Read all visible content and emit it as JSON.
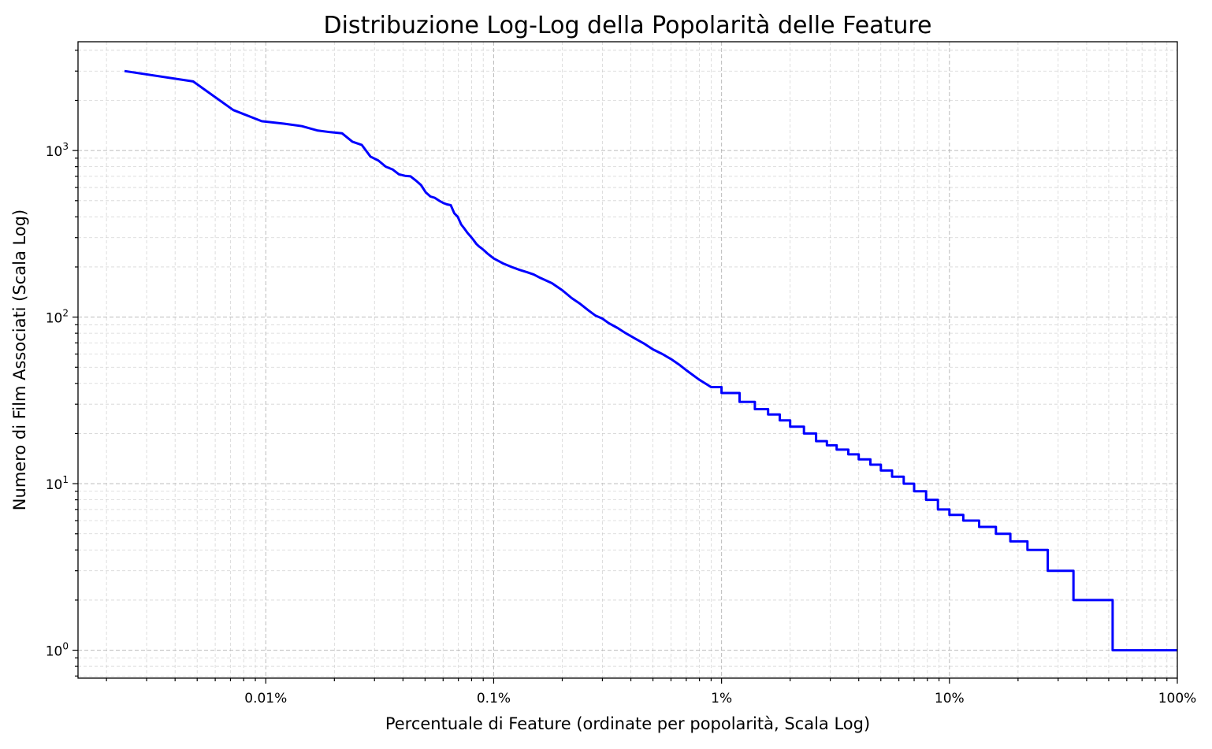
{
  "chart_data": {
    "type": "line",
    "title": "Distribuzione Log-Log della Popolarità delle Feature",
    "xlabel": "Percentuale di Feature (ordinate per popolarità, Scala Log)",
    "ylabel": "Numero di Film Associati (Scala Log)",
    "x_scale": "log",
    "y_scale": "log",
    "xlim": [
      0.0015,
      100
    ],
    "ylim": [
      0.68,
      4500
    ],
    "grid": true,
    "line_color": "#0000ff",
    "x_ticks": [
      {
        "value": 0.01,
        "label": "0.01%"
      },
      {
        "value": 0.1,
        "label": "0.1%"
      },
      {
        "value": 1,
        "label": "1%"
      },
      {
        "value": 10,
        "label": "10%"
      },
      {
        "value": 100,
        "label": "100%"
      }
    ],
    "y_ticks": [
      {
        "value": 1,
        "base": "10",
        "exp": "0"
      },
      {
        "value": 10,
        "base": "10",
        "exp": "1"
      },
      {
        "value": 100,
        "base": "10",
        "exp": "2"
      },
      {
        "value": 1000,
        "base": "10",
        "exp": "3"
      }
    ],
    "series": [
      {
        "x": [
          0.0024,
          0.0048,
          0.0072,
          0.0096,
          0.012,
          0.0144,
          0.0168,
          0.0192,
          0.0216,
          0.024,
          0.0264,
          0.0288,
          0.0312,
          0.0336,
          0.036,
          0.0384,
          0.0408,
          0.0432,
          0.0456,
          0.048,
          0.0504,
          0.0528,
          0.0552,
          0.0576,
          0.06,
          0.0624,
          0.0648,
          0.0672,
          0.0696,
          0.072,
          0.0744,
          0.0768,
          0.0792,
          0.0816,
          0.084,
          0.0864,
          0.0888,
          0.0912,
          0.0936,
          0.096,
          0.1,
          0.11,
          0.12,
          0.13,
          0.14,
          0.15,
          0.16,
          0.18,
          0.2,
          0.22,
          0.24,
          0.26,
          0.28,
          0.3,
          0.32,
          0.35,
          0.38,
          0.42,
          0.46,
          0.5,
          0.55,
          0.6,
          0.65,
          0.7,
          0.8,
          0.9,
          1.0,
          1.2,
          1.4,
          1.6,
          1.8,
          2.0,
          2.3,
          2.6,
          2.9,
          3.2,
          3.6,
          4.0,
          4.5,
          5.0,
          5.6,
          6.3,
          7.0,
          7.9,
          8.9,
          10.0,
          11.5,
          13.5,
          16.0,
          18.5,
          22.0,
          27.0,
          35.0,
          52.0,
          100.0
        ],
        "y": [
          3000,
          2600,
          1750,
          1500,
          1450,
          1400,
          1320,
          1290,
          1270,
          1130,
          1080,
          920,
          870,
          800,
          770,
          720,
          705,
          700,
          660,
          620,
          560,
          530,
          520,
          500,
          485,
          475,
          470,
          420,
          400,
          360,
          340,
          320,
          305,
          290,
          275,
          265,
          258,
          250,
          242,
          235,
          225,
          210,
          200,
          192,
          186,
          180,
          172,
          160,
          145,
          130,
          120,
          110,
          102,
          98,
          92,
          86,
          80,
          74,
          69,
          64,
          60,
          56,
          52,
          48,
          42,
          38,
          35,
          31,
          28,
          26,
          24,
          22,
          20,
          18,
          17,
          16,
          15,
          14,
          13,
          12,
          11,
          10,
          9,
          8,
          7,
          6.5,
          6,
          5.5,
          5,
          4.5,
          4,
          3,
          2,
          1,
          1
        ]
      }
    ]
  }
}
